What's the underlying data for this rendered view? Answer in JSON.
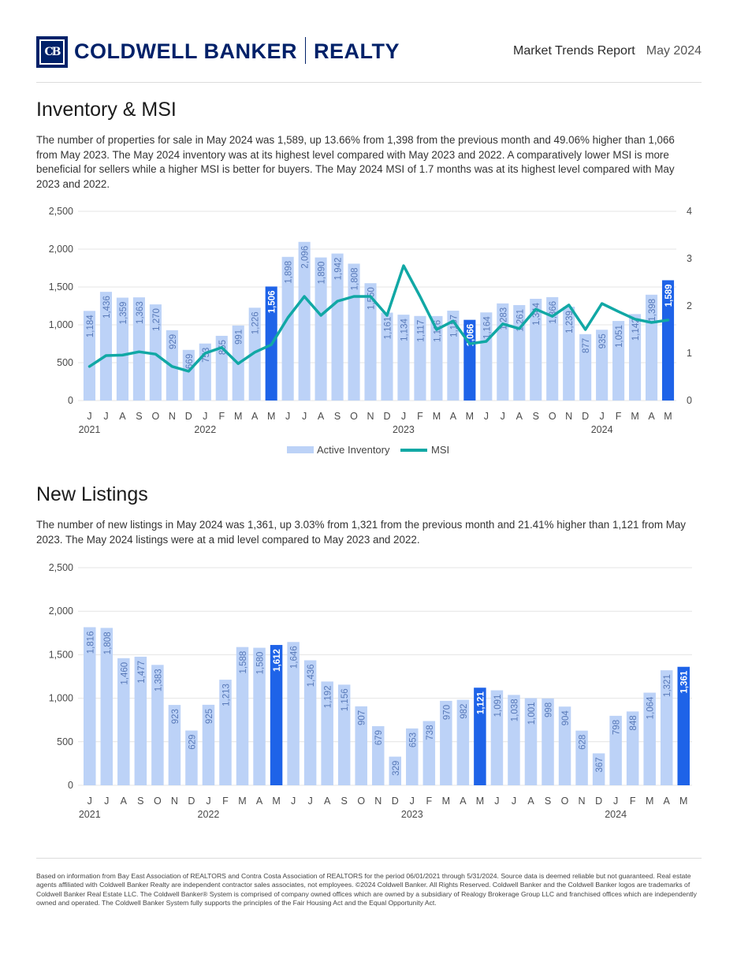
{
  "header": {
    "logo_text": "CB",
    "brand_left": "COLDWELL BANKER",
    "brand_right": "REALTY",
    "report_title": "Market Trends Report",
    "report_date": "May 2024"
  },
  "inventory": {
    "heading": "Inventory & MSI",
    "paragraph": "The number of properties for sale in May 2024 was 1,589, up 13.66% from 1,398 from the previous month and 49.06% higher than 1,066 from May 2023. The May 2024 inventory was at its highest level compared with May 2023 and 2022. A comparatively lower MSI is more beneficial for sellers while a higher MSI is better for buyers. The May 2024 MSI of 1.7 months was at its highest level compared with May 2023 and 2022."
  },
  "listings": {
    "heading": "New Listings",
    "paragraph": "The number of new listings in May 2024 was 1,361, up 3.03% from 1,321 from the previous month and 21.41% higher than 1,121 from May 2023. The May 2024 listings were at a mid level compared to May 2023 and 2022."
  },
  "footer": {
    "text": "Based on information from Bay East Association of REALTORS and Contra Costa Association of REALTORS for the period 06/01/2021 through 5/31/2024. Source data is deemed reliable but not guaranteed. Real estate agents affiliated with Coldwell Banker Realty are independent contractor sales associates, not employees. ©2024 Coldwell Banker. All Rights Reserved. Coldwell Banker and the Coldwell Banker logos are trademarks of Coldwell Banker Real Estate LLC. The Coldwell Banker® System is comprised of company owned offices which are owned by a subsidiary of Realogy Brokerage Group LLC and franchised offices which are independently owned and operated. The Coldwell Banker System fully supports the principles of the Fair Housing Act and the Equal Opportunity Act."
  },
  "colors": {
    "bar": "#bcd2f7",
    "bar_highlight": "#1e63e8",
    "bar_label": "#5879b8",
    "line": "#11a8a5",
    "grid": "#e4e4e4",
    "axis_text": "#4a4a4a"
  },
  "chart_data": [
    {
      "type": "bar",
      "title": "Inventory & MSI",
      "categories": [
        "J",
        "J",
        "A",
        "S",
        "O",
        "N",
        "D",
        "J",
        "F",
        "M",
        "A",
        "M",
        "J",
        "J",
        "A",
        "S",
        "O",
        "N",
        "D",
        "J",
        "F",
        "M",
        "A",
        "M",
        "J",
        "J",
        "A",
        "S",
        "O",
        "N",
        "D",
        "J",
        "F",
        "M",
        "A",
        "M"
      ],
      "year_labels": [
        {
          "index": 0,
          "label": "2021"
        },
        {
          "index": 7,
          "label": "2022"
        },
        {
          "index": 19,
          "label": "2023"
        },
        {
          "index": 31,
          "label": "2024"
        }
      ],
      "highlight_indices": [
        11,
        23,
        35
      ],
      "series": [
        {
          "name": "Active Inventory",
          "type": "bar",
          "axis": "left",
          "values": [
            1184,
            1436,
            1359,
            1363,
            1270,
            929,
            669,
            753,
            855,
            991,
            1226,
            1506,
            1898,
            2096,
            1890,
            1942,
            1808,
            1550,
            1161,
            1134,
            1117,
            1116,
            1187,
            1066,
            1164,
            1283,
            1261,
            1344,
            1366,
            1239,
            877,
            935,
            1051,
            1142,
            1398,
            1589
          ],
          "labels": [
            "1,184",
            "1,436",
            "1,359",
            "1,363",
            "1,270",
            "929",
            "669",
            "753",
            "855",
            "991",
            "1,226",
            "1,506",
            "1,898",
            "2,096",
            "1,890",
            "1,942",
            "1,808",
            "1,550",
            "1,161",
            "1,134",
            "1,117",
            "1,116",
            "1,187",
            "1,066",
            "1,164",
            "1,283",
            "1,261",
            "1,344",
            "1,366",
            "1,239",
            "877",
            "935",
            "1,051",
            "1,142",
            "1,398",
            "1,589"
          ]
        },
        {
          "name": "MSI",
          "type": "line",
          "axis": "right",
          "values": [
            0.72,
            0.95,
            0.96,
            1.03,
            0.98,
            0.72,
            0.62,
            1.0,
            1.12,
            0.78,
            1.02,
            1.18,
            1.75,
            2.2,
            1.8,
            2.1,
            2.2,
            2.2,
            1.8,
            2.85,
            2.2,
            1.5,
            1.68,
            1.2,
            1.25,
            1.62,
            1.52,
            1.93,
            1.78,
            2.02,
            1.5,
            2.05,
            1.88,
            1.72,
            1.65,
            1.7
          ]
        }
      ],
      "y_ticks": [
        "0",
        "500",
        "1,000",
        "1,500",
        "2,000",
        "2,500"
      ],
      "y2_ticks": [
        "0",
        "1",
        "2",
        "3",
        "4"
      ],
      "ylim": [
        0,
        2500
      ],
      "y2lim": [
        0,
        4
      ],
      "legend": [
        "Active Inventory",
        "MSI"
      ],
      "legend_position": "bottom"
    },
    {
      "type": "bar",
      "title": "New Listings",
      "categories": [
        "J",
        "J",
        "A",
        "S",
        "O",
        "N",
        "D",
        "J",
        "F",
        "M",
        "A",
        "M",
        "J",
        "J",
        "A",
        "S",
        "O",
        "N",
        "D",
        "J",
        "F",
        "M",
        "A",
        "M",
        "J",
        "J",
        "A",
        "S",
        "O",
        "N",
        "D",
        "J",
        "F",
        "M",
        "A",
        "M"
      ],
      "year_labels": [
        {
          "index": 0,
          "label": "2021"
        },
        {
          "index": 7,
          "label": "2022"
        },
        {
          "index": 19,
          "label": "2023"
        },
        {
          "index": 31,
          "label": "2024"
        }
      ],
      "highlight_indices": [
        11,
        23,
        35
      ],
      "series": [
        {
          "name": "New Listings",
          "type": "bar",
          "values": [
            1816,
            1808,
            1460,
            1477,
            1383,
            923,
            629,
            925,
            1213,
            1588,
            1580,
            1612,
            1646,
            1436,
            1192,
            1156,
            907,
            679,
            329,
            653,
            738,
            970,
            982,
            1121,
            1091,
            1038,
            1001,
            998,
            904,
            628,
            367,
            798,
            848,
            1064,
            1321,
            1361
          ],
          "labels": [
            "1,816",
            "1,808",
            "1,460",
            "1,477",
            "1,383",
            "923",
            "629",
            "925",
            "1,213",
            "1,588",
            "1,580",
            "1,612",
            "1,646",
            "1,436",
            "1,192",
            "1,156",
            "907",
            "679",
            "329",
            "653",
            "738",
            "970",
            "982",
            "1,121",
            "1,091",
            "1,038",
            "1,001",
            "998",
            "904",
            "628",
            "367",
            "798",
            "848",
            "1,064",
            "1,321",
            "1,361"
          ]
        }
      ],
      "y_ticks": [
        "0",
        "500",
        "1,000",
        "1,500",
        "2,000",
        "2,500"
      ],
      "ylim": [
        0,
        2500
      ]
    }
  ]
}
